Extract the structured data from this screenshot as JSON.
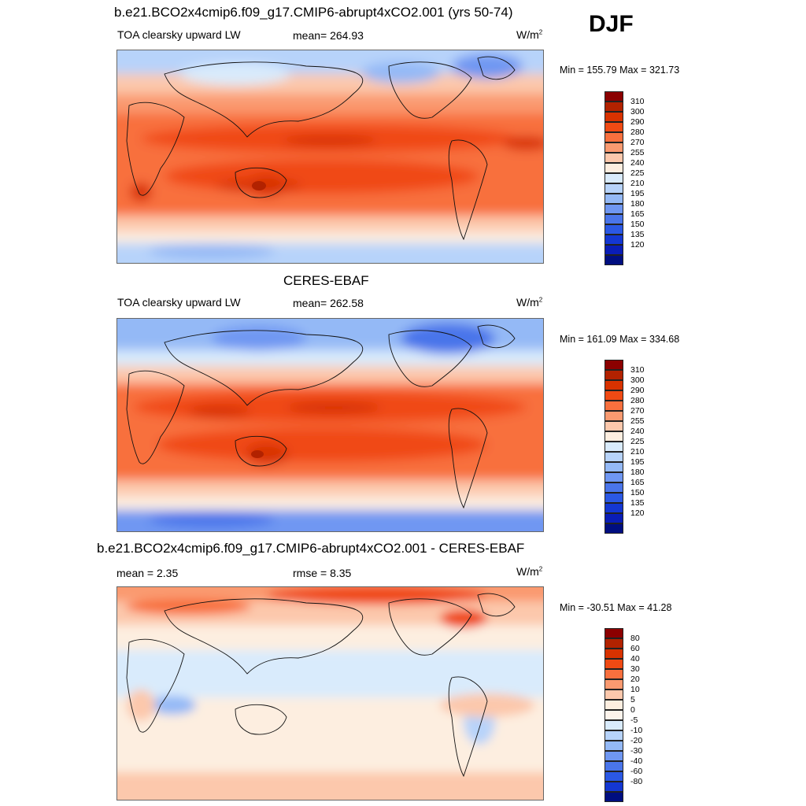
{
  "season": "DJF",
  "panels": [
    {
      "title": "b.e21.BCO2x4cmip6.f09_g17.CMIP6-abrupt4xCO2.001 (yrs 50-74)",
      "left_label": "TOA clearsky upward LW",
      "center_label": "mean= 264.93",
      "units": "W/m",
      "units_sup": "2",
      "minmax": "Min = 155.79 Max = 321.73",
      "colorbar": {
        "colors": [
          "#8b0000",
          "#b22200",
          "#d83200",
          "#f04a14",
          "#f8703e",
          "#fa9a70",
          "#fcc8ac",
          "#fdeee0",
          "#d9ebfc",
          "#b7d3fa",
          "#94b9f6",
          "#6f97f2",
          "#4a75ea",
          "#2b58e4",
          "#1437d2",
          "#0a1db6",
          "#000e80"
        ],
        "ticks": [
          "310",
          "300",
          "290",
          "280",
          "270",
          "255",
          "240",
          "225",
          "210",
          "195",
          "180",
          "165",
          "150",
          "135",
          "120"
        ]
      }
    },
    {
      "title": "CERES-EBAF",
      "left_label": "TOA clearsky upward LW",
      "center_label": "mean= 262.58",
      "units": "W/m",
      "units_sup": "2",
      "minmax": "Min = 161.09 Max = 334.68",
      "colorbar": {
        "colors": [
          "#8b0000",
          "#b22200",
          "#d83200",
          "#f04a14",
          "#f8703e",
          "#fa9a70",
          "#fcc8ac",
          "#fdeee0",
          "#d9ebfc",
          "#b7d3fa",
          "#94b9f6",
          "#6f97f2",
          "#4a75ea",
          "#2b58e4",
          "#1437d2",
          "#0a1db6",
          "#000e80"
        ],
        "ticks": [
          "310",
          "300",
          "290",
          "280",
          "270",
          "255",
          "240",
          "225",
          "210",
          "195",
          "180",
          "165",
          "150",
          "135",
          "120"
        ]
      }
    },
    {
      "title": "b.e21.BCO2x4cmip6.f09_g17.CMIP6-abrupt4xCO2.001 - CERES-EBAF",
      "left_label": "mean =   2.35",
      "center_label": "rmse =   8.35",
      "units": "W/m",
      "units_sup": "2",
      "minmax": "Min = -30.51 Max =  41.28",
      "colorbar": {
        "colors": [
          "#8b0000",
          "#b22200",
          "#d83200",
          "#f04a14",
          "#f8703e",
          "#fa9a70",
          "#fcc8ac",
          "#fdeee0",
          "#fdf4ec",
          "#d9ebfc",
          "#b7d3fa",
          "#94b9f6",
          "#6f97f2",
          "#4a75ea",
          "#2b58e4",
          "#1437d2",
          "#000e80"
        ],
        "ticks": [
          "80",
          "60",
          "40",
          "30",
          "20",
          "10",
          "5",
          "0",
          "-5",
          "-10",
          "-20",
          "-30",
          "-40",
          "-60",
          "-80"
        ]
      }
    }
  ]
}
